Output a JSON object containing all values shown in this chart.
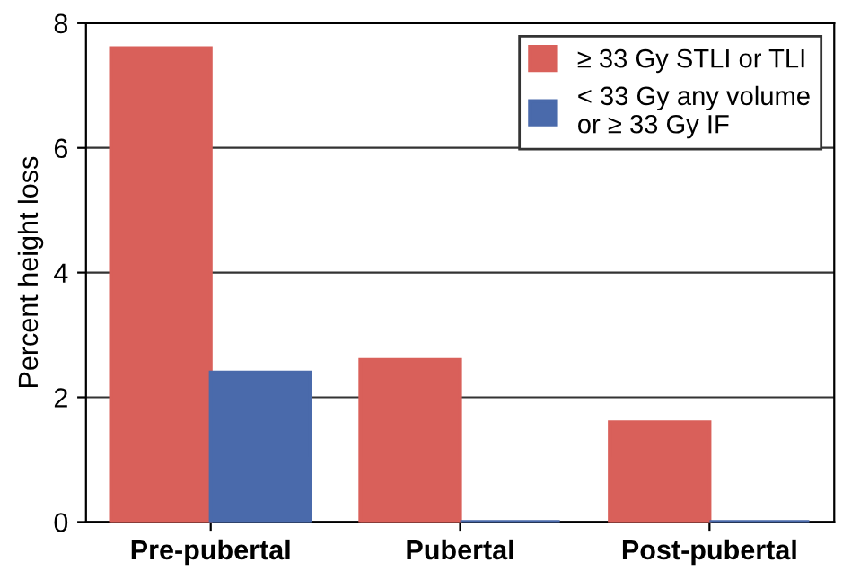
{
  "chart_data": {
    "type": "bar",
    "ylabel": "Percent height loss",
    "categories": [
      "Pre-pubertal",
      "Pubertal",
      "Post-pubertal"
    ],
    "series": [
      {
        "name": "≥ 33 Gy STLI or TLI",
        "color": "#d9605a",
        "values": [
          7.6,
          2.6,
          1.6
        ]
      },
      {
        "name": "< 33 Gy any volume\nor ≥ 33 Gy IF",
        "color": "#4a6aab",
        "values": [
          2.4,
          0,
          0
        ]
      }
    ],
    "ylim": [
      0,
      8
    ],
    "yticks": [
      0,
      2,
      4,
      6,
      8
    ],
    "grid": "y",
    "legend": "top right"
  }
}
